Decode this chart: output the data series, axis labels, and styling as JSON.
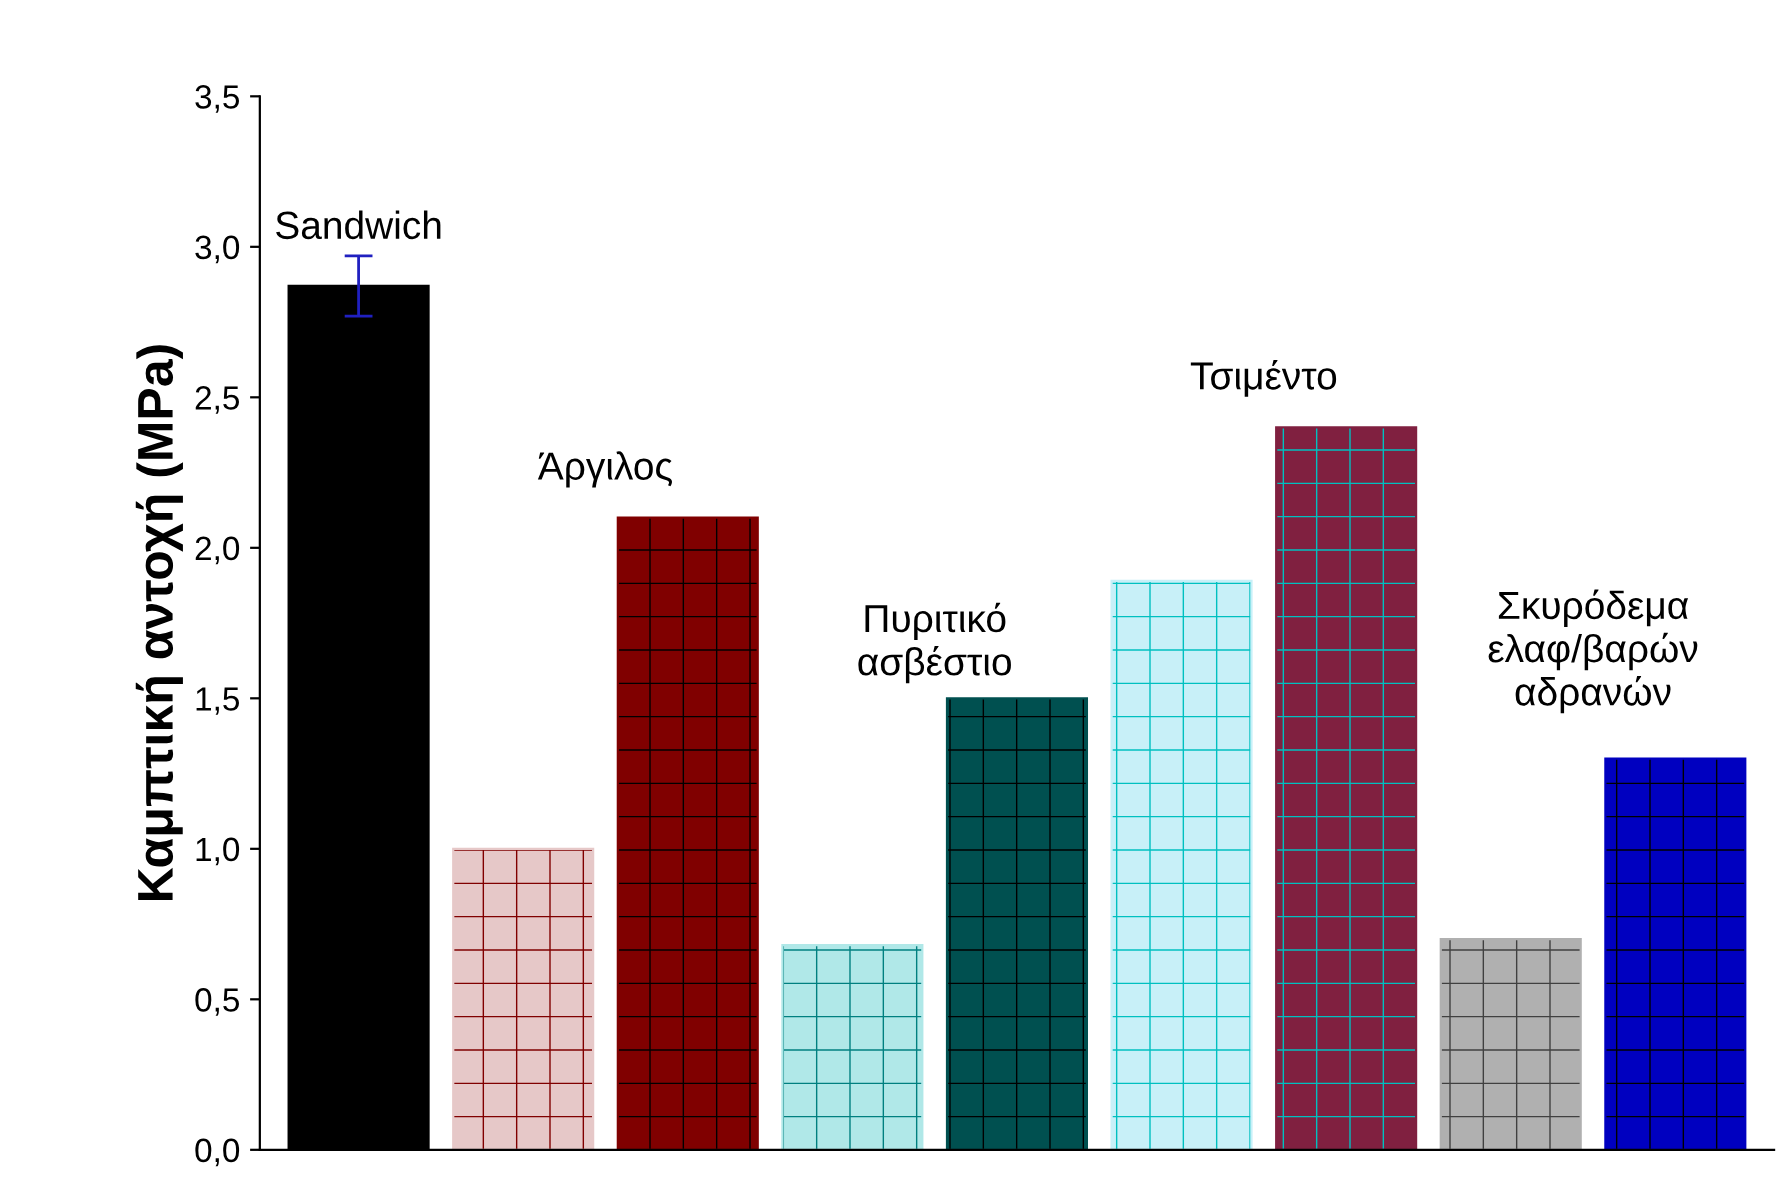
{
  "chart_data": {
    "type": "bar",
    "ylabel": "Καμπτική αντοχή (MPa)",
    "categories": [
      null,
      null,
      null,
      null,
      null,
      null,
      null,
      null,
      null
    ],
    "values": [
      2.87,
      1.0,
      2.1,
      0.68,
      1.5,
      1.89,
      2.4,
      0.7,
      1.3
    ],
    "colors": [
      "#000000",
      "#e6c8c8",
      "#800000",
      "#b0e8e8",
      "#005050",
      "#c8f0f8",
      "#802040",
      "#b0b0b0",
      "#0000c0"
    ],
    "errors": [
      0.1,
      null,
      null,
      null,
      null,
      null,
      null,
      null,
      null
    ],
    "ylim": [
      0,
      3.5
    ],
    "yticks": [
      {
        "value": 0,
        "label": "0,0"
      },
      {
        "value": 0.5,
        "label": "0,5"
      },
      {
        "value": 1.0,
        "label": "1,0"
      },
      {
        "value": 1.5,
        "label": "1,5"
      },
      {
        "value": 2.0,
        "label": "2,0"
      },
      {
        "value": 2.5,
        "label": "2,5"
      },
      {
        "value": 3.0,
        "label": "3,0"
      },
      {
        "value": 3.5,
        "label": "3,5"
      }
    ],
    "tick_labels": "y",
    "grid": false,
    "legend": false,
    "annotations": [
      "Sandwich",
      "Άργιλος",
      "Πυριτικό\nασβέστιο",
      "Τσιμέντο",
      "Σκυρόδεμα\nελαφ/βαρών\nαδρανών"
    ]
  }
}
